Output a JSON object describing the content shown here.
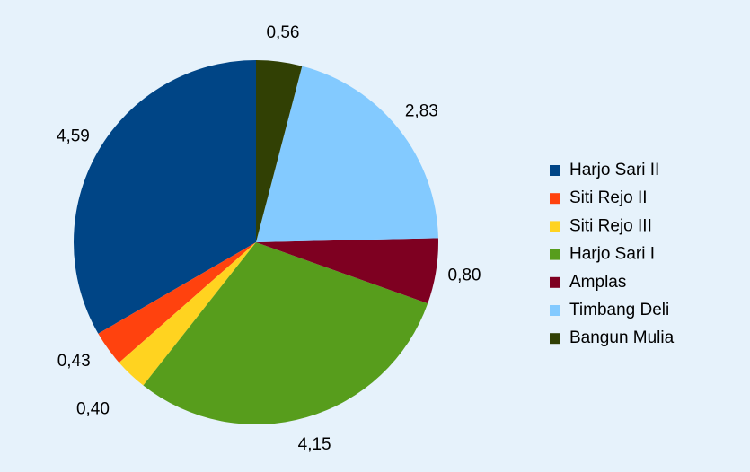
{
  "chart_data": {
    "type": "pie",
    "categories": [
      "Harjo Sari II",
      "Siti Rejo II",
      "Siti Rejo III",
      "Harjo Sari I",
      "Amplas",
      "Timbang Deli",
      "Bangun Mulia"
    ],
    "values": [
      4.59,
      0.43,
      0.4,
      4.15,
      0.8,
      2.83,
      0.56
    ],
    "value_labels": [
      "4,59",
      "0,43",
      "0,40",
      "4,15",
      "0,80",
      "2,83",
      "0,56"
    ],
    "colors": [
      "#004586",
      "#ff420e",
      "#ffd320",
      "#579d1c",
      "#7e0021",
      "#83caff",
      "#314004"
    ],
    "legend": "right"
  }
}
